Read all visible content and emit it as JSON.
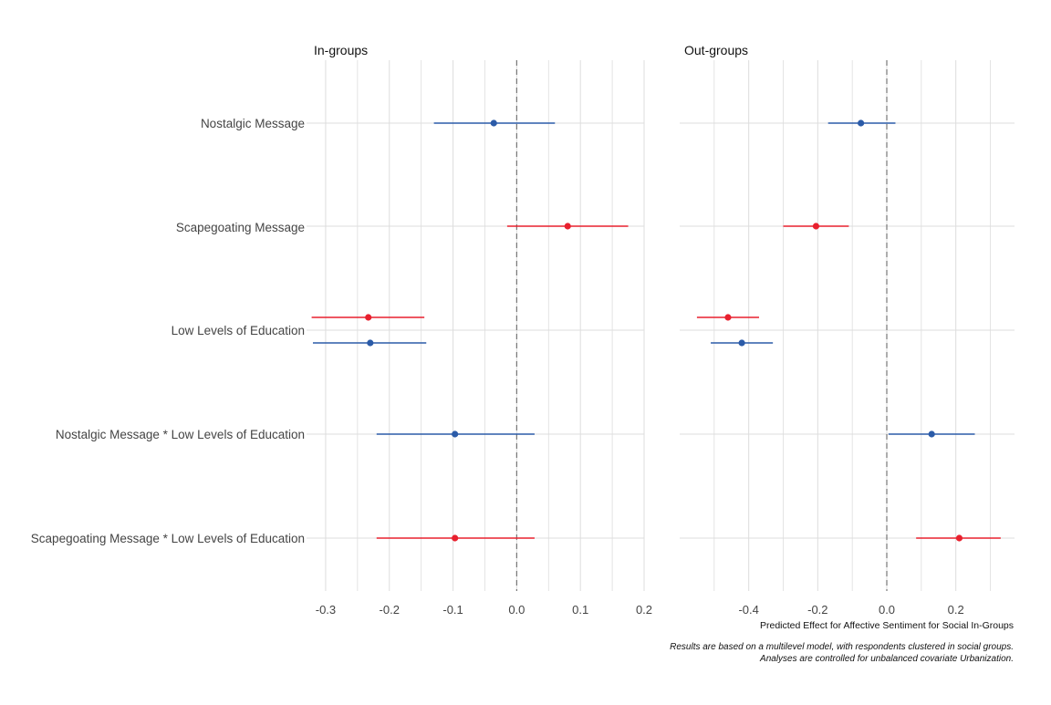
{
  "chart_data": {
    "type": "forest",
    "rows": [
      "Nostalgic Message",
      "Scapegoating Message",
      "Low Levels of Education",
      "Nostalgic Message * Low Levels of Education",
      "Scapegoating Message * Low Levels of Education"
    ],
    "colors": {
      "nostalgic": "#2b5ba8",
      "scapegoating": "#e8202e"
    },
    "panels": [
      {
        "title": "In-groups",
        "xlim": [
          -0.33,
          0.2
        ],
        "xticks": [
          -0.3,
          -0.2,
          -0.1,
          0.0,
          0.1,
          0.2
        ],
        "xtick_labels": [
          "-0.3",
          "-0.2",
          "-0.1",
          "0.0",
          "0.1",
          "0.2"
        ],
        "minor_gridlines": [
          -0.25,
          -0.15,
          -0.05,
          0.05,
          0.15
        ],
        "reference_line": 0.0,
        "estimates": [
          {
            "row": 0,
            "group": "nostalgic",
            "estimate": -0.036,
            "lower": -0.13,
            "upper": 0.06
          },
          {
            "row": 1,
            "group": "scapegoating",
            "estimate": 0.08,
            "lower": -0.015,
            "upper": 0.175
          },
          {
            "row": 2,
            "group": "scapegoating",
            "estimate": -0.233,
            "lower": -0.322,
            "upper": -0.145
          },
          {
            "row": 2,
            "group": "nostalgic",
            "estimate": -0.23,
            "lower": -0.32,
            "upper": -0.142
          },
          {
            "row": 3,
            "group": "nostalgic",
            "estimate": -0.097,
            "lower": -0.22,
            "upper": 0.028
          },
          {
            "row": 4,
            "group": "scapegoating",
            "estimate": -0.097,
            "lower": -0.22,
            "upper": 0.028
          }
        ]
      },
      {
        "title": "Out-groups",
        "xlim": [
          -0.6,
          0.37
        ],
        "xticks": [
          -0.4,
          -0.2,
          0.0,
          0.2
        ],
        "xtick_labels": [
          "-0.4",
          "-0.2",
          "0.0",
          "0.2"
        ],
        "minor_gridlines": [
          -0.5,
          -0.3,
          -0.1,
          0.1,
          0.3
        ],
        "reference_line": 0.0,
        "estimates": [
          {
            "row": 0,
            "group": "nostalgic",
            "estimate": -0.075,
            "lower": -0.17,
            "upper": 0.025
          },
          {
            "row": 1,
            "group": "scapegoating",
            "estimate": -0.205,
            "lower": -0.3,
            "upper": -0.11
          },
          {
            "row": 2,
            "group": "scapegoating",
            "estimate": -0.46,
            "lower": -0.55,
            "upper": -0.37
          },
          {
            "row": 2,
            "group": "nostalgic",
            "estimate": -0.42,
            "lower": -0.51,
            "upper": -0.33
          },
          {
            "row": 3,
            "group": "nostalgic",
            "estimate": 0.13,
            "lower": 0.005,
            "upper": 0.255
          },
          {
            "row": 4,
            "group": "scapegoating",
            "estimate": 0.21,
            "lower": 0.085,
            "upper": 0.33
          }
        ]
      }
    ],
    "xlabel": "Predicted Effect for Affective Sentiment for Social In-Groups",
    "caption": [
      "Results are based on a multilevel model, with respondents clustered in social groups.",
      "Analyses are controlled for unbalanced covariate Urbanization."
    ],
    "grid": true,
    "legend": "none"
  }
}
